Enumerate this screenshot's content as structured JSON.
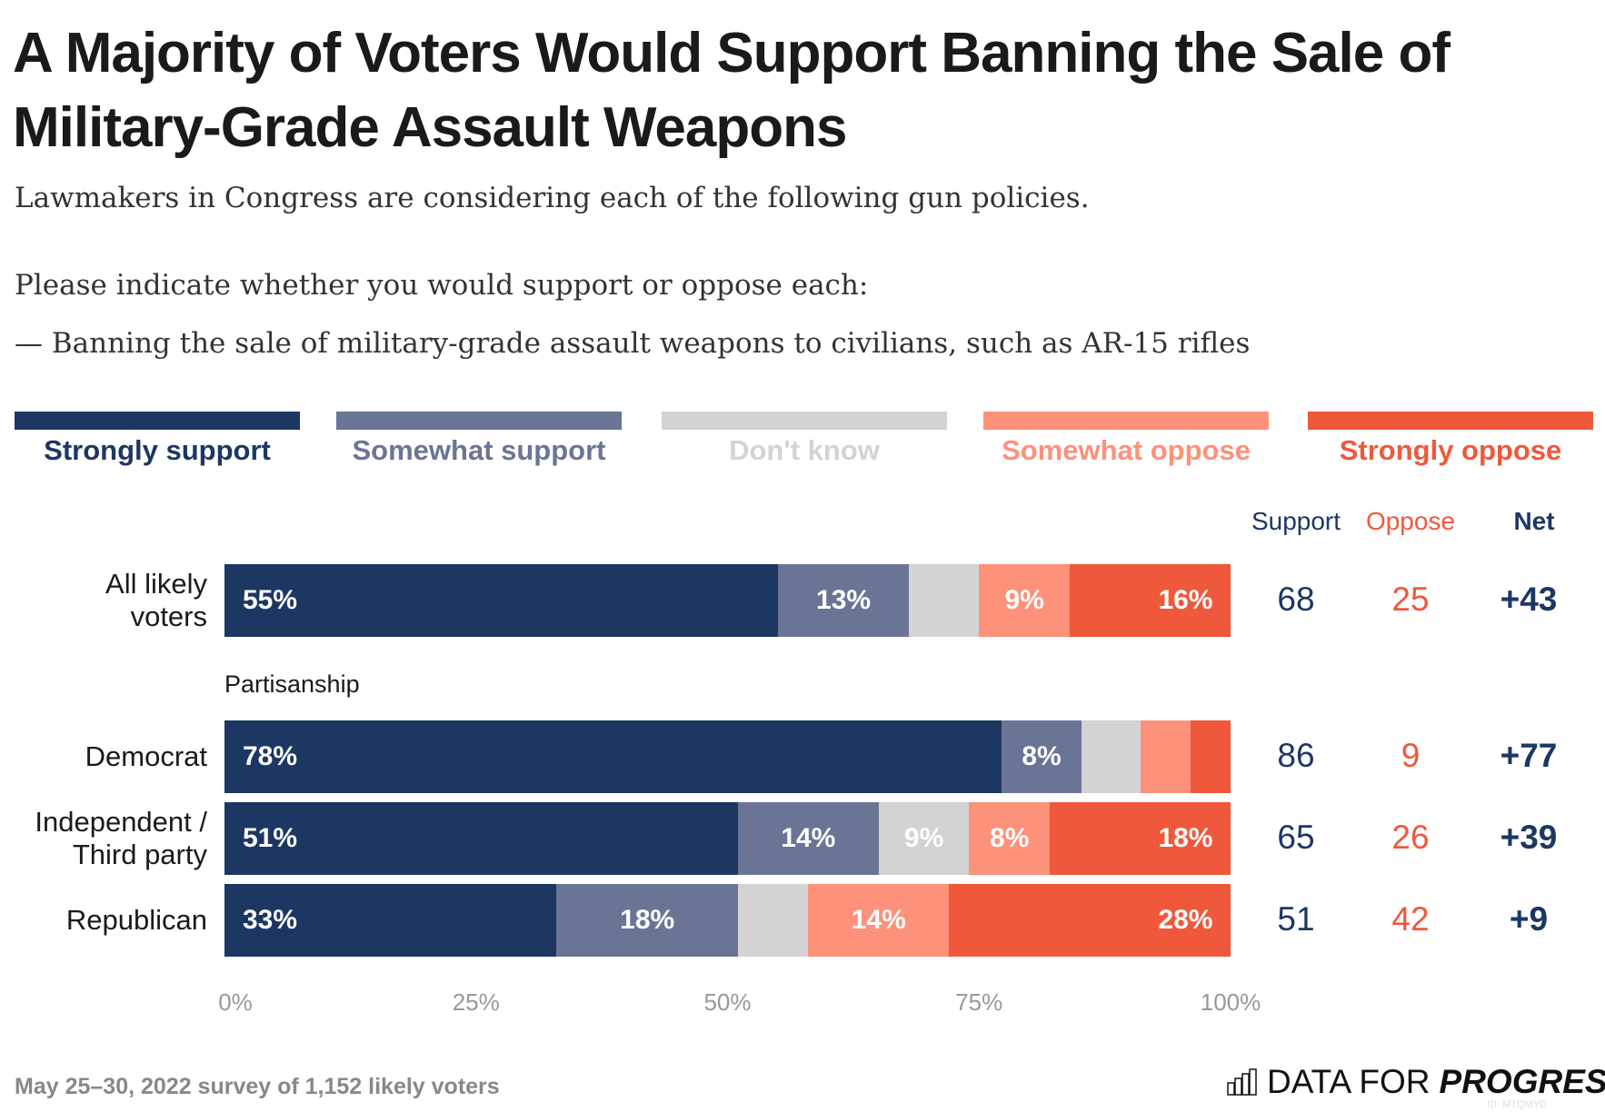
{
  "title": "A Majority of Voters Would Support Banning the Sale of Military-Grade Assault Weapons",
  "subtitle_lines": [
    "Lawmakers in Congress are considering each of the following gun policies.",
    "Please indicate whether you would support or oppose each:",
    "— Banning the sale of military-grade assault weapons to civilians, such as AR-15 rifles"
  ],
  "chart_data": {
    "type": "bar",
    "orientation": "horizontal-stacked",
    "legend": [
      "Strongly support",
      "Somewhat support",
      "Don't know",
      "Somewhat oppose",
      "Strongly oppose"
    ],
    "legend_position": "top",
    "colors": [
      "#1d3763",
      "#6a7596",
      "#d3d3d5",
      "#fe9179",
      "#f0583b"
    ],
    "label_colors": [
      "#1d3763",
      "#6a7596",
      "#d3d3d5",
      "#fe9179",
      "#f0583b"
    ],
    "group_label": "Partisanship",
    "categories": [
      "All likely voters",
      "Democrat",
      "Independent / Third party",
      "Republican"
    ],
    "series": [
      {
        "name": "Strongly support",
        "values": [
          55,
          78,
          51,
          33
        ]
      },
      {
        "name": "Somewhat support",
        "values": [
          13,
          8,
          14,
          18
        ]
      },
      {
        "name": "Don't know",
        "values": [
          7,
          6,
          9,
          7
        ]
      },
      {
        "name": "Somewhat oppose",
        "values": [
          9,
          5,
          8,
          14
        ]
      },
      {
        "name": "Strongly oppose",
        "values": [
          16,
          4,
          18,
          28
        ]
      }
    ],
    "data_labels": [
      [
        "55%",
        "13%",
        "",
        "9%",
        "16%"
      ],
      [
        "78%",
        "8%",
        "",
        "",
        ""
      ],
      [
        "51%",
        "14%",
        "9%",
        "8%",
        "18%"
      ],
      [
        "33%",
        "18%",
        "",
        "14%",
        "28%"
      ]
    ],
    "xlim": [
      0,
      100
    ],
    "xticks": [
      "0%",
      "25%",
      "50%",
      "75%",
      "100%"
    ],
    "grid": false,
    "summary_headers": [
      "Support",
      "Oppose",
      "Net"
    ],
    "summary": [
      [
        "68",
        "25",
        "+43"
      ],
      [
        "86",
        "9",
        "+77"
      ],
      [
        "65",
        "26",
        "+39"
      ],
      [
        "51",
        "42",
        "+9"
      ]
    ]
  },
  "footer": {
    "note": "May 25–30, 2022 survey of 1,152 likely voters",
    "logo_plain": "DATA FOR",
    "logo_bold": "PROGRESS",
    "id": "ID: MTQMYD"
  }
}
